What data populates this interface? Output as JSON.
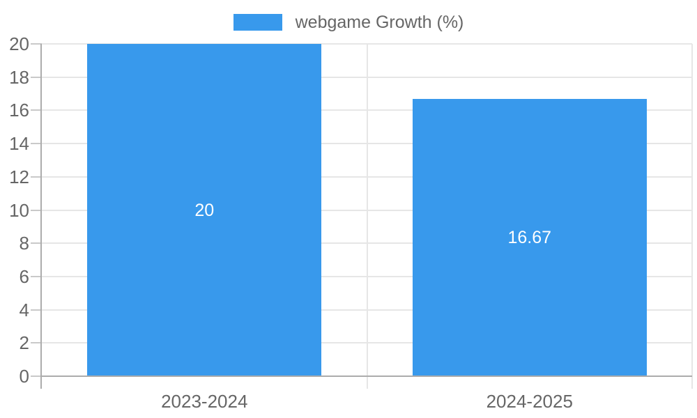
{
  "legend": {
    "label": "webgame Growth (%)"
  },
  "chart_data": {
    "type": "bar",
    "title": "",
    "categories": [
      "2023-2024",
      "2024-2025"
    ],
    "series": [
      {
        "name": "webgame Growth (%)",
        "values": [
          20,
          16.67
        ]
      }
    ],
    "value_labels": [
      "20",
      "16.67"
    ],
    "ylim": [
      0,
      20
    ],
    "ytick_step": 2,
    "yticks": [
      0,
      2,
      4,
      6,
      8,
      10,
      12,
      14,
      16,
      18,
      20
    ],
    "grid": "on",
    "legend_position": "top",
    "colors": {
      "bar": "#3899EC",
      "grid": "#E6E6E6",
      "axis": "#ACACAC",
      "tick": "#C9C9C9",
      "text": "#666666",
      "value_label": "#FFFFFF"
    }
  }
}
